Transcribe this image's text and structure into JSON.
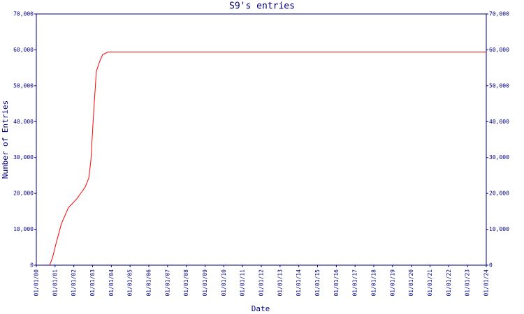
{
  "chart_data": {
    "type": "line",
    "title": "S9's entries",
    "x_label": "Date",
    "y_label": "Number of Entries",
    "xlim": [
      0,
      24
    ],
    "xticks": [
      {
        "value": 0,
        "label": "01/01/00"
      },
      {
        "value": 1,
        "label": "01/01/01"
      },
      {
        "value": 2,
        "label": "01/01/02"
      },
      {
        "value": 3,
        "label": "01/01/03"
      },
      {
        "value": 4,
        "label": "01/01/04"
      },
      {
        "value": 5,
        "label": "01/01/05"
      },
      {
        "value": 6,
        "label": "01/01/06"
      },
      {
        "value": 7,
        "label": "01/01/07"
      },
      {
        "value": 8,
        "label": "01/01/08"
      },
      {
        "value": 9,
        "label": "01/01/09"
      },
      {
        "value": 10,
        "label": "01/01/10"
      },
      {
        "value": 11,
        "label": "01/01/11"
      },
      {
        "value": 12,
        "label": "01/01/12"
      },
      {
        "value": 13,
        "label": "01/01/13"
      },
      {
        "value": 14,
        "label": "01/01/14"
      },
      {
        "value": 15,
        "label": "01/01/15"
      },
      {
        "value": 16,
        "label": "01/01/16"
      },
      {
        "value": 17,
        "label": "01/01/17"
      },
      {
        "value": 18,
        "label": "01/01/18"
      },
      {
        "value": 19,
        "label": "01/01/19"
      },
      {
        "value": 20,
        "label": "01/01/20"
      },
      {
        "value": 21,
        "label": "01/01/21"
      },
      {
        "value": 22,
        "label": "01/01/22"
      },
      {
        "value": 23,
        "label": "01/01/23"
      },
      {
        "value": 24,
        "label": "01/01/24"
      }
    ],
    "ylim": [
      0,
      70000
    ],
    "yticks": [
      0,
      {
        "value": 10000,
        "label": "10,000"
      },
      {
        "value": 20000,
        "label": "20,000"
      },
      {
        "value": 30000,
        "label": "30,000"
      },
      {
        "value": 40000,
        "label": "40,000"
      },
      {
        "value": 50000,
        "label": "50,000"
      },
      {
        "value": 60000,
        "label": "60,000"
      },
      {
        "value": 70000,
        "label": "70,000"
      }
    ],
    "y2lim": [
      0,
      70000
    ],
    "y2ticks": [
      0,
      {
        "value": 10000,
        "label": "10,000"
      },
      {
        "value": 20000,
        "label": "20,000"
      },
      {
        "value": 30000,
        "label": "30,000"
      },
      {
        "value": 40000,
        "label": "40,000"
      },
      {
        "value": 50000,
        "label": "50,000"
      },
      {
        "value": 60000,
        "label": "60,000"
      },
      {
        "value": 70000,
        "label": "70,000"
      }
    ],
    "x": [
      0.71,
      0.86,
      1.04,
      1.34,
      1.71,
      2.16,
      2.61,
      2.8,
      2.91,
      3.06,
      3.2,
      3.35,
      3.54,
      3.84,
      24
    ],
    "series": [
      {
        "color": "#ff0000",
        "values": [
          0,
          2000,
          5800,
          11600,
          16000,
          18500,
          21800,
          24300,
          29200,
          42800,
          53900,
          56400,
          58700,
          59400,
          59400
        ]
      }
    ]
  }
}
